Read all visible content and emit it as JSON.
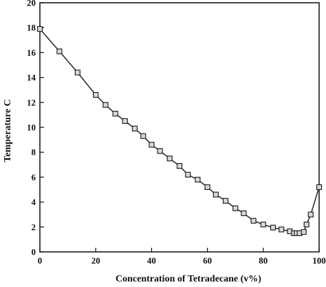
{
  "chart_data": {
    "type": "line",
    "title": "",
    "xlabel": "Concentration of Tetradecane (v%)",
    "ylabel": "Temperature C",
    "xlim": [
      0,
      100
    ],
    "ylim": [
      0,
      20
    ],
    "x_ticks": [
      "0",
      "20",
      "40",
      "60",
      "80",
      "100"
    ],
    "y_ticks": [
      "0",
      "2",
      "4",
      "6",
      "8",
      "10",
      "12",
      "14",
      "16",
      "18",
      "20"
    ],
    "grid": false,
    "legend": "none",
    "series": [
      {
        "marker": "square",
        "color": "#222222",
        "x": [
          0,
          7,
          13.5,
          20,
          23.5,
          27,
          30.5,
          34,
          37,
          40,
          43,
          46.5,
          50,
          53,
          56.5,
          60,
          63,
          66.5,
          70,
          73,
          76.5,
          80,
          83.5,
          86.5,
          89.5,
          91,
          92,
          93,
          94.5,
          95.5,
          97,
          100
        ],
        "y": [
          17.9,
          16.1,
          14.4,
          12.6,
          11.8,
          11.1,
          10.5,
          9.9,
          9.3,
          8.6,
          8.1,
          7.5,
          6.9,
          6.2,
          5.8,
          5.2,
          4.6,
          4.1,
          3.5,
          3.1,
          2.5,
          2.2,
          1.95,
          1.8,
          1.65,
          1.5,
          1.5,
          1.5,
          1.6,
          2.2,
          3.0,
          5.2
        ]
      }
    ]
  }
}
